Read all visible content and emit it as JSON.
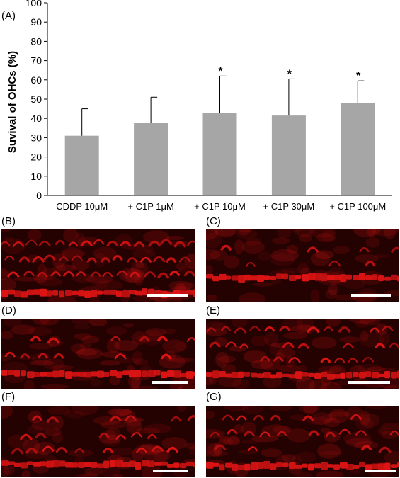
{
  "panels": {
    "A": "(A)",
    "B": "(B)",
    "C": "(C)",
    "D": "(D)",
    "E": "(E)",
    "F": "(F)",
    "G": "(G)"
  },
  "chart_data": {
    "type": "bar",
    "ylabel": "Suvival of OHCs (%)",
    "xlabel": "",
    "ylim": [
      0,
      100
    ],
    "yticks": [
      0,
      10,
      20,
      30,
      40,
      50,
      60,
      70,
      80,
      90,
      100
    ],
    "categories": [
      "CDDP 10μM",
      "+ C1P 1μM",
      "+ C1P 10μM",
      "+ C1P 30μM",
      "+ C1P 100μM"
    ],
    "values": [
      31,
      37.5,
      43,
      41.5,
      48
    ],
    "error": [
      14,
      13.5,
      19,
      19,
      11.5
    ],
    "significance": [
      "",
      "",
      "*",
      "*",
      "*"
    ],
    "bar_color": "#a6a6a6",
    "grid": false
  },
  "micrographs": {
    "fluorescence_color": "#e01414",
    "background_color": "#250202",
    "scalebar_color": "#ffffff"
  }
}
